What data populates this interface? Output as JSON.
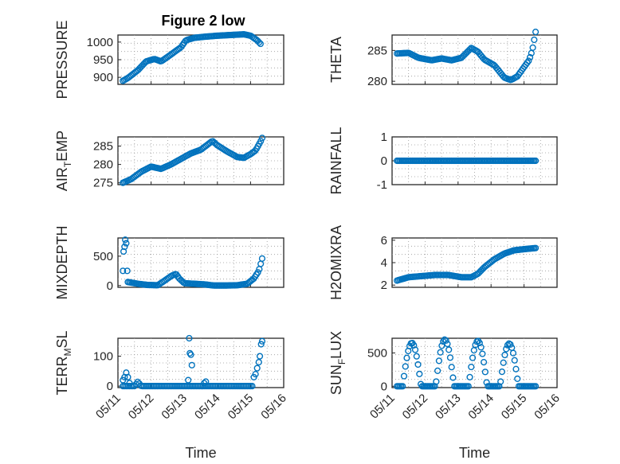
{
  "figure": {
    "title": "Figure 2 low",
    "marker_color": "#0072BD"
  },
  "chart_data": [
    {
      "type": "scatter",
      "ylabel": "PRESSURE",
      "xlabel": "",
      "ylim": [
        880,
        1020
      ],
      "yticks": [
        "900",
        "950",
        "1000"
      ],
      "ytick_values": [
        900,
        950,
        1000
      ],
      "xlim": [
        0,
        5
      ],
      "grid": true,
      "series": [
        {
          "kind": "curve",
          "t0": 0.15,
          "t1": 4.3,
          "n": 100,
          "knots": [
            [
              0.15,
              890
            ],
            [
              0.3,
              898
            ],
            [
              0.6,
              920
            ],
            [
              0.85,
              945
            ],
            [
              1.1,
              952
            ],
            [
              1.3,
              945
            ],
            [
              1.5,
              958
            ],
            [
              1.75,
              975
            ],
            [
              1.9,
              985
            ],
            [
              2.05,
              1005
            ],
            [
              2.3,
              1012
            ],
            [
              2.6,
              1015
            ],
            [
              3.0,
              1018
            ],
            [
              3.4,
              1020
            ],
            [
              3.8,
              1022
            ],
            [
              4.0,
              1018
            ],
            [
              4.2,
              1005
            ],
            [
              4.3,
              995
            ]
          ]
        }
      ]
    },
    {
      "type": "scatter",
      "ylabel": "THETA",
      "xlabel": "",
      "ylim": [
        279.5,
        287.5
      ],
      "yticks": [
        "280",
        "285"
      ],
      "ytick_values": [
        280,
        285
      ],
      "xlim": [
        0,
        5
      ],
      "grid": true,
      "series": [
        {
          "kind": "curve",
          "t0": 0.15,
          "t1": 4.35,
          "n": 100,
          "knots": [
            [
              0.15,
              284.5
            ],
            [
              0.5,
              284.6
            ],
            [
              0.8,
              283.8
            ],
            [
              1.2,
              283.4
            ],
            [
              1.5,
              283.7
            ],
            [
              1.8,
              283.4
            ],
            [
              2.1,
              283.8
            ],
            [
              2.4,
              285.4
            ],
            [
              2.6,
              284.8
            ],
            [
              2.8,
              283.5
            ],
            [
              3.1,
              282.6
            ],
            [
              3.4,
              280.6
            ],
            [
              3.6,
              280.2
            ],
            [
              3.8,
              280.8
            ],
            [
              4.0,
              282.3
            ],
            [
              4.15,
              283.4
            ],
            [
              4.25,
              285.0
            ],
            [
              4.35,
              288.0
            ]
          ]
        }
      ]
    },
    {
      "type": "scatter",
      "ylabel": "AIR_TEMP",
      "xlabel": "",
      "ylim": [
        274.5,
        287.5
      ],
      "yticks": [
        "275",
        "280",
        "285"
      ],
      "ytick_values": [
        275,
        280,
        285
      ],
      "xlim": [
        0,
        5
      ],
      "grid": true,
      "series": [
        {
          "kind": "curve",
          "t0": 0.15,
          "t1": 4.35,
          "n": 100,
          "knots": [
            [
              0.15,
              275
            ],
            [
              0.4,
              276
            ],
            [
              0.7,
              278
            ],
            [
              1.0,
              279.4
            ],
            [
              1.3,
              278.8
            ],
            [
              1.6,
              280
            ],
            [
              1.9,
              281.5
            ],
            [
              2.2,
              283
            ],
            [
              2.5,
              284
            ],
            [
              2.85,
              286.4
            ],
            [
              3.0,
              285.2
            ],
            [
              3.3,
              283.5
            ],
            [
              3.6,
              282
            ],
            [
              3.8,
              281.8
            ],
            [
              4.0,
              282.8
            ],
            [
              4.15,
              283.8
            ],
            [
              4.3,
              286.2
            ],
            [
              4.35,
              287.2
            ]
          ]
        }
      ]
    },
    {
      "type": "scatter",
      "ylabel": "RAINFALL",
      "xlabel": "",
      "ylim": [
        -1,
        1
      ],
      "yticks": [
        "-1",
        "0",
        "1"
      ],
      "ytick_values": [
        -1,
        0,
        1
      ],
      "xlim": [
        0,
        5
      ],
      "grid": true,
      "series": [
        {
          "kind": "curve",
          "t0": 0.15,
          "t1": 4.35,
          "n": 100,
          "knots": [
            [
              0.15,
              0
            ],
            [
              4.35,
              0
            ]
          ]
        }
      ]
    },
    {
      "type": "scatter",
      "ylabel": "MIXDEPTH",
      "xlabel": "",
      "ylim": [
        -30,
        810
      ],
      "yticks": [
        "0",
        "500"
      ],
      "ytick_values": [
        0,
        500
      ],
      "xlim": [
        0,
        5
      ],
      "grid": true,
      "series": [
        {
          "kind": "curve",
          "t0": 0.3,
          "t1": 4.35,
          "n": 95,
          "knots": [
            [
              0.3,
              60
            ],
            [
              0.6,
              30
            ],
            [
              0.9,
              10
            ],
            [
              1.2,
              5
            ],
            [
              1.4,
              80
            ],
            [
              1.6,
              160
            ],
            [
              1.75,
              200
            ],
            [
              1.85,
              120
            ],
            [
              2.0,
              40
            ],
            [
              2.3,
              30
            ],
            [
              2.6,
              20
            ],
            [
              2.9,
              0
            ],
            [
              3.2,
              0
            ],
            [
              3.6,
              5
            ],
            [
              3.9,
              30
            ],
            [
              4.1,
              120
            ],
            [
              4.25,
              250
            ],
            [
              4.35,
              460
            ]
          ]
        },
        {
          "kind": "points",
          "x": [
            0.15,
            0.17,
            0.2,
            0.22,
            0.25,
            0.28
          ],
          "y": [
            250,
            580,
            660,
            780,
            720,
            250
          ]
        }
      ]
    },
    {
      "type": "scatter",
      "ylabel": "H2OMIXRA",
      "xlabel": "",
      "ylim": [
        1.8,
        6.2
      ],
      "yticks": [
        "2",
        "4",
        "6"
      ],
      "ytick_values": [
        2,
        4,
        6
      ],
      "xlim": [
        0,
        5
      ],
      "grid": true,
      "series": [
        {
          "kind": "curve",
          "t0": 0.15,
          "t1": 4.35,
          "n": 100,
          "knots": [
            [
              0.15,
              2.4
            ],
            [
              0.5,
              2.7
            ],
            [
              0.9,
              2.8
            ],
            [
              1.3,
              2.9
            ],
            [
              1.7,
              2.9
            ],
            [
              2.1,
              2.7
            ],
            [
              2.4,
              2.7
            ],
            [
              2.6,
              3.0
            ],
            [
              2.8,
              3.6
            ],
            [
              3.1,
              4.3
            ],
            [
              3.4,
              4.8
            ],
            [
              3.7,
              5.1
            ],
            [
              4.0,
              5.2
            ],
            [
              4.35,
              5.3
            ]
          ]
        }
      ]
    },
    {
      "type": "scatter",
      "ylabel": "TERR_MSL",
      "xlabel": "Time",
      "ylim": [
        -5,
        160
      ],
      "yticks": [
        "0",
        "100"
      ],
      "ytick_values": [
        0,
        100
      ],
      "xticks": [
        "05/11",
        "05/12",
        "05/13",
        "05/14",
        "05/15",
        "05/16"
      ],
      "xlim": [
        0,
        5
      ],
      "grid": true,
      "series": [
        {
          "kind": "curve",
          "t0": 0.15,
          "t1": 4.05,
          "n": 80,
          "knots": [
            [
              0.15,
              0
            ],
            [
              0.5,
              0
            ],
            [
              0.6,
              15
            ],
            [
              0.7,
              0
            ],
            [
              4.05,
              0
            ]
          ]
        },
        {
          "kind": "points",
          "x": [
            0.15,
            0.2,
            0.25,
            0.3,
            0.35,
            2.12,
            2.15,
            2.17,
            2.2,
            2.23,
            2.6,
            2.65,
            4.1,
            4.15,
            4.2,
            4.25,
            4.28,
            4.32,
            4.35
          ],
          "y": [
            20,
            30,
            45,
            30,
            10,
            20,
            160,
            110,
            105,
            70,
            10,
            15,
            30,
            40,
            60,
            80,
            100,
            140,
            150
          ]
        }
      ]
    },
    {
      "type": "scatter",
      "ylabel": "SUN_FLUX",
      "xlabel": "Time",
      "ylim": [
        -20,
        720
      ],
      "yticks": [
        "0",
        "500"
      ],
      "ytick_values": [
        0,
        500
      ],
      "xticks": [
        "05/11",
        "05/12",
        "05/13",
        "05/14",
        "05/15",
        "05/16"
      ],
      "xlim": [
        0,
        5
      ],
      "grid": true,
      "series": [
        {
          "kind": "diurnal",
          "t0": 0.15,
          "t1": 4.35,
          "n": 100,
          "peaks": [
            [
              0.6,
              650
            ],
            [
              1.6,
              700
            ],
            [
              2.6,
              680
            ],
            [
              3.55,
              640
            ]
          ],
          "width": 0.28
        }
      ]
    }
  ]
}
